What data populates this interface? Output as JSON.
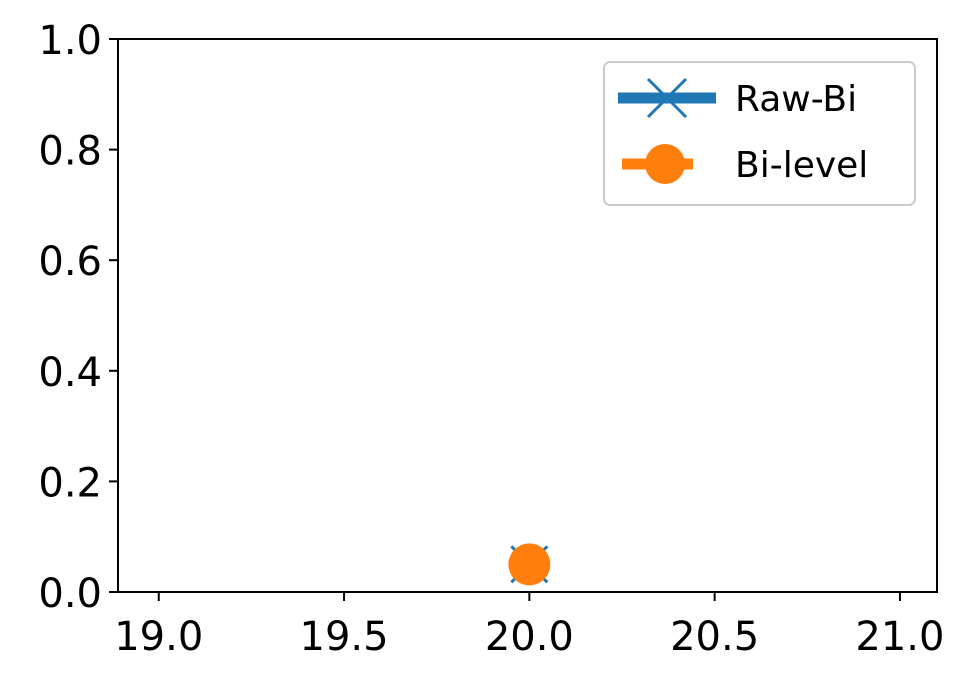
{
  "chart_data": {
    "type": "line",
    "title": "",
    "xlabel": "",
    "ylabel": "",
    "xlim": [
      18.89,
      21.1
    ],
    "ylim": [
      0.0,
      1.0
    ],
    "x_ticks": [
      19.0,
      19.5,
      20.0,
      20.5,
      21.0
    ],
    "x_tick_labels": [
      "19.0",
      "19.5",
      "20.0",
      "20.5",
      "21.0"
    ],
    "y_ticks": [
      0.0,
      0.2,
      0.4,
      0.6,
      0.8,
      1.0
    ],
    "y_tick_labels": [
      "0.0",
      "0.2",
      "0.4",
      "0.6",
      "0.8",
      "1.0"
    ],
    "grid": false,
    "legend_position": "top-right",
    "series": [
      {
        "name": "Raw-Bi",
        "marker": "x",
        "color": "#1f77b4",
        "x": [
          20.0
        ],
        "y": [
          0.05
        ]
      },
      {
        "name": "Bi-level",
        "marker": "circle",
        "color": "#ff7f0e",
        "x": [
          20.0
        ],
        "y": [
          0.05
        ]
      }
    ]
  }
}
